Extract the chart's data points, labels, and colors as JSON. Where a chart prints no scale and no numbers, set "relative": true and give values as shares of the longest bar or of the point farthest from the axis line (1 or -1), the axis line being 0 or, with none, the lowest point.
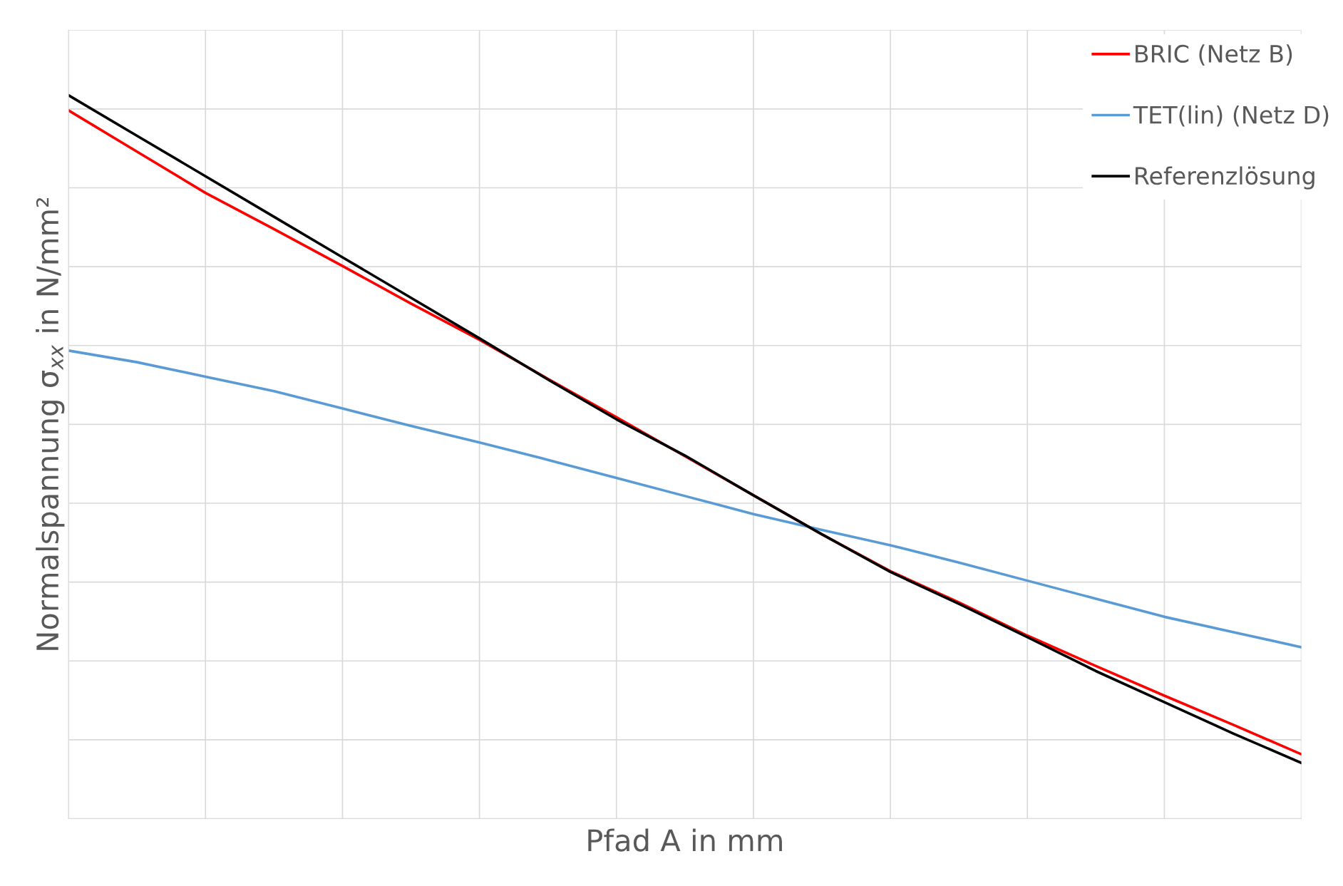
{
  "chart_data": {
    "type": "line",
    "relative": true,
    "xlabel": "Pfad A in mm",
    "ylabel": "Normalspannung σ$_{xx}$ in N/mm²",
    "categories": [
      null,
      null,
      null,
      null,
      null,
      null,
      null,
      null,
      null,
      null,
      null,
      null,
      null,
      null,
      null,
      null,
      null,
      null,
      null
    ],
    "series": [
      {
        "name": "BRIC (Netz B)",
        "color": "#ff0000",
        "values": [
          0.979,
          0.922,
          0.865,
          0.815,
          0.764,
          0.712,
          0.662,
          0.608,
          0.555,
          0.501,
          0.447,
          0.393,
          0.342,
          0.299,
          0.253,
          0.211,
          0.17,
          0.13,
          0.089
        ]
      },
      {
        "name": "TET(lin) (Netz D)",
        "color": "#5b9bd5",
        "values": [
          0.647,
          0.631,
          0.611,
          0.591,
          0.567,
          0.543,
          0.52,
          0.496,
          0.471,
          0.446,
          0.421,
          0.399,
          0.378,
          0.354,
          0.329,
          0.304,
          0.279,
          0.258,
          0.237
        ]
      },
      {
        "name": "Referenzlösung",
        "color": "#000000",
        "values": [
          1.0,
          0.944,
          0.888,
          0.832,
          0.776,
          0.72,
          0.664,
          0.607,
          0.552,
          0.502,
          0.447,
          0.393,
          0.341,
          0.297,
          0.251,
          0.204,
          0.161,
          0.118,
          0.077
        ]
      }
    ],
    "grid": true,
    "legend": "top right",
    "marker": "none",
    "line_style": "solid",
    "tick_labels": false
  }
}
